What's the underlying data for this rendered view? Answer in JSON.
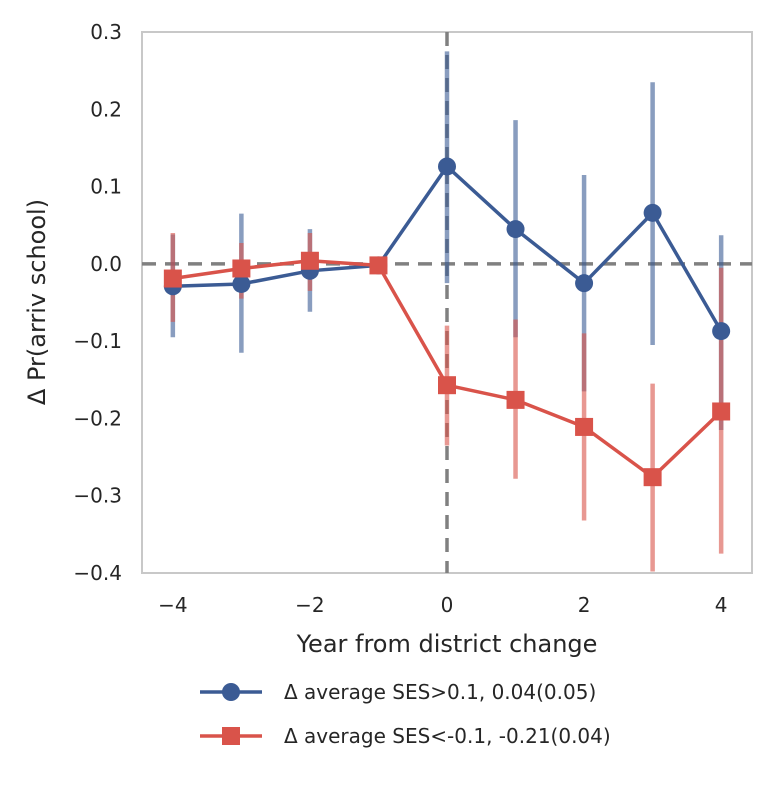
{
  "chart_data": {
    "type": "line",
    "xlabel": "Year from district change",
    "ylabel": "Δ Pr(arriv school)",
    "xlim": [
      -4.45,
      4.45
    ],
    "ylim": [
      -0.4,
      0.3
    ],
    "xticks": [
      -4,
      -2,
      0,
      2,
      4
    ],
    "xtick_labels": [
      "−4",
      "−2",
      "0",
      "2",
      "4"
    ],
    "yticks": [
      -0.4,
      -0.3,
      -0.2,
      -0.1,
      0.0,
      0.1,
      0.2,
      0.3
    ],
    "ytick_labels": [
      "−0.4",
      "−0.3",
      "−0.2",
      "−0.1",
      "0.0",
      "0.1",
      "0.2",
      "0.3"
    ],
    "grid": false,
    "reference_lines": {
      "horizontal_y": 0,
      "vertical_x": 0,
      "style": "dashed",
      "color": "#808080"
    },
    "legend_position": "below",
    "x": [
      -4,
      -3,
      -2,
      -1,
      0,
      1,
      2,
      3,
      4
    ],
    "series": [
      {
        "name": "Δ average SES>0.1, 0.04(0.05)",
        "color": "#3b5b94",
        "marker": "circle",
        "values": [
          -0.029,
          -0.026,
          -0.009,
          -0.002,
          0.126,
          0.045,
          -0.025,
          0.066,
          -0.087
        ],
        "ci_low": [
          -0.095,
          -0.115,
          -0.062,
          -0.002,
          -0.025,
          -0.095,
          -0.165,
          -0.105,
          -0.215
        ],
        "ci_high": [
          0.038,
          0.065,
          0.045,
          -0.002,
          0.275,
          0.186,
          0.115,
          0.235,
          0.037
        ]
      },
      {
        "name": "Δ average SES<-0.1, -0.21(0.04)",
        "color": "#d9534a",
        "marker": "square",
        "values": [
          -0.019,
          -0.006,
          0.004,
          -0.002,
          -0.157,
          -0.176,
          -0.211,
          -0.276,
          -0.191
        ],
        "ci_low": [
          -0.075,
          -0.045,
          -0.035,
          -0.002,
          -0.235,
          -0.278,
          -0.332,
          -0.398,
          -0.375
        ],
        "ci_high": [
          0.04,
          0.027,
          0.04,
          -0.002,
          -0.08,
          -0.072,
          -0.09,
          -0.155,
          -0.005
        ]
      }
    ]
  }
}
